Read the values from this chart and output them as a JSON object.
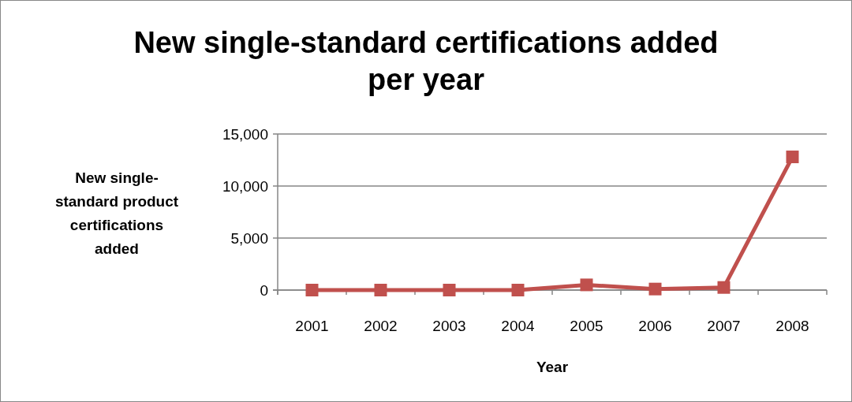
{
  "chart_data": {
    "type": "line",
    "title": "New single-standard certifications added per year",
    "xlabel": "Year",
    "ylabel": "New single-standard product certifications added",
    "categories": [
      "2001",
      "2002",
      "2003",
      "2004",
      "2005",
      "2006",
      "2007",
      "2008"
    ],
    "series": [
      {
        "color": "#c0504d",
        "values": [
          0,
          0,
          0,
          0,
          500,
          100,
          250,
          12800
        ]
      }
    ],
    "ylim": [
      0,
      15000
    ],
    "yticks": [
      {
        "value": 0,
        "label": "0"
      },
      {
        "value": 5000,
        "label": "5,000"
      },
      {
        "value": 10000,
        "label": "10,000"
      },
      {
        "value": 15000,
        "label": "15,000"
      }
    ],
    "grid": "y",
    "marker": "square",
    "line_style": "solid"
  }
}
